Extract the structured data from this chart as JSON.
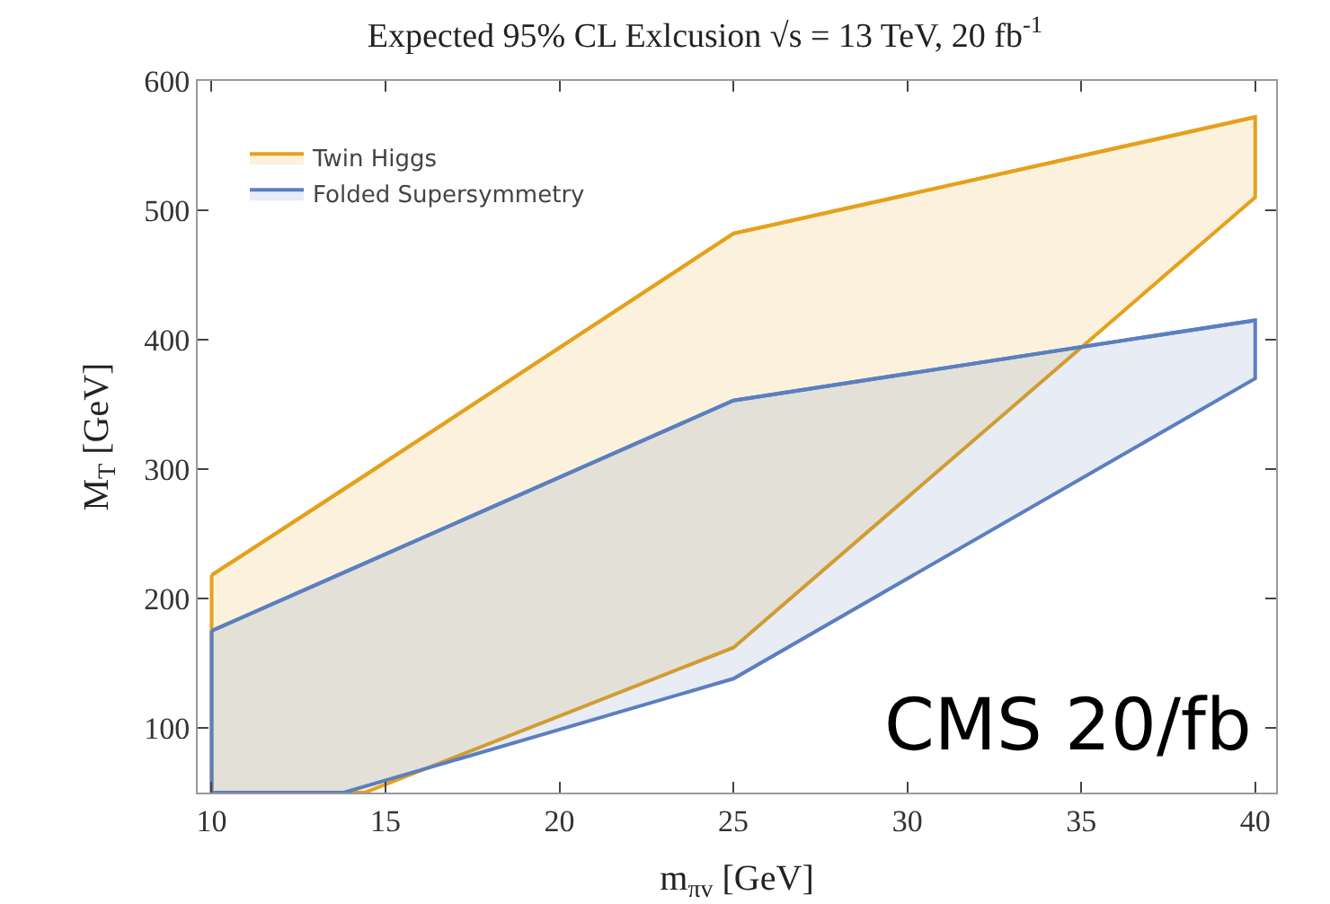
{
  "chart_data": {
    "type": "line",
    "title": "Expected 95% CL Exlcusion √s = 13 TeV, 20 fb$^{-1}$",
    "xlabel": "m$_{πv}$ [GeV]",
    "ylabel": "M$_{T}$ [GeV]",
    "xlim": [
      9.6,
      40.6
    ],
    "xticks": [
      10,
      15,
      20,
      25,
      30,
      35,
      40
    ],
    "ylim": [
      50,
      600
    ],
    "yticks": [
      100,
      200,
      300,
      400,
      500,
      600
    ],
    "grid": false,
    "legend": "top left",
    "series": [
      {
        "name": "Twin Higgs",
        "color": "#e5a11c",
        "x": [
          10,
          14.4,
          25,
          40
        ],
        "values": [
          218,
          295,
          482,
          572
        ],
        "lower": [
          50,
          50,
          162,
          510
        ],
        "upper": [
          218,
          295,
          482,
          572
        ]
      },
      {
        "name": "Folded Supersymmetry",
        "color": "#5b7fbf",
        "x": [
          10,
          13.8,
          25,
          40
        ],
        "values": [
          175,
          220,
          353,
          415
        ],
        "lower": [
          50,
          50,
          138,
          370
        ],
        "upper": [
          175,
          220,
          353,
          415
        ]
      }
    ],
    "annotations": [
      "CMS 20/fb"
    ]
  }
}
